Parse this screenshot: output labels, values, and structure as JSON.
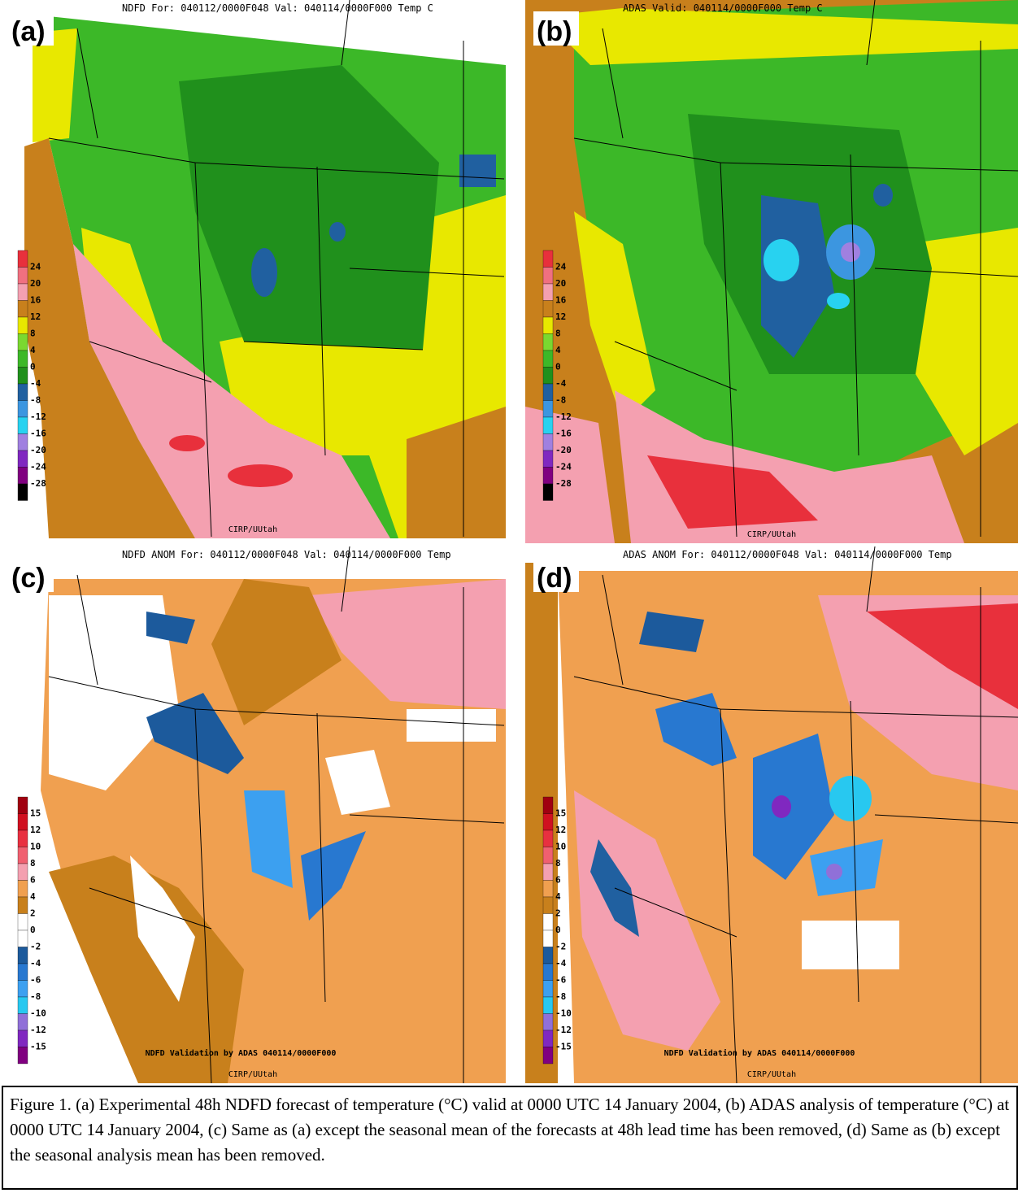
{
  "panels": [
    {
      "label": "(a)",
      "header": "NDFD For: 040112/0000F048 Val: 040114/0000F000 Temp C",
      "footer": [
        "CIRP/UUtah"
      ],
      "colorbar": {
        "labels": [
          24,
          20,
          16,
          12,
          8,
          4,
          0,
          -4,
          -8,
          -12,
          -16,
          -20,
          -24,
          -28
        ],
        "colors": [
          "#e8303c",
          "#f07080",
          "#f4a0b0",
          "#c8801c",
          "#e8e800",
          "#7ad830",
          "#3cb828",
          "#20901c",
          "#2060a0",
          "#3c96e0",
          "#28d2f0",
          "#a080e0",
          "#8028c0",
          "#800080",
          "#000000"
        ]
      }
    },
    {
      "label": "(b)",
      "header": "ADAS Valid: 040114/0000F000 Temp C",
      "footer": [
        "CIRP/UUtah"
      ],
      "colorbar": {
        "labels": [
          24,
          20,
          16,
          12,
          8,
          4,
          0,
          -4,
          -8,
          -12,
          -16,
          -20,
          -24,
          -28
        ],
        "colors": [
          "#e8303c",
          "#f07080",
          "#f4a0b0",
          "#c8801c",
          "#e8e800",
          "#7ad830",
          "#3cb828",
          "#20901c",
          "#2060a0",
          "#3c96e0",
          "#28d2f0",
          "#a080e0",
          "#8028c0",
          "#800080",
          "#000000"
        ]
      }
    },
    {
      "label": "(c)",
      "header": "NDFD ANOM For: 040112/0000F048 Val: 040114/0000F000 Temp",
      "footer": [
        "NDFD Validation by ADAS 040114/0000F000",
        "CIRP/UUtah"
      ],
      "colorbar": {
        "labels": [
          15,
          12,
          10,
          8,
          6,
          4,
          2,
          0,
          -2,
          -4,
          -6,
          -8,
          -10,
          -12,
          -15
        ],
        "colors": [
          "#a00010",
          "#d01020",
          "#e83040",
          "#f06070",
          "#f4a0b0",
          "#f0a050",
          "#c8801c",
          "#ffffff",
          "#ffffff",
          "#1c5a9c",
          "#2878d0",
          "#3ca0f0",
          "#28c8f0",
          "#9070d8",
          "#8028c0",
          "#800080"
        ]
      }
    },
    {
      "label": "(d)",
      "header": "ADAS ANOM For: 040112/0000F048 Val: 040114/0000F000 Temp",
      "footer": [
        "NDFD Validation by ADAS 040114/0000F000",
        "CIRP/UUtah"
      ],
      "colorbar": {
        "labels": [
          15,
          12,
          10,
          8,
          6,
          4,
          2,
          0,
          -2,
          -4,
          -6,
          -8,
          -10,
          -12,
          -15
        ],
        "colors": [
          "#a00010",
          "#d01020",
          "#e83040",
          "#f06070",
          "#f4a0b0",
          "#f0a050",
          "#c8801c",
          "#ffffff",
          "#ffffff",
          "#1c5a9c",
          "#2878d0",
          "#3ca0f0",
          "#28c8f0",
          "#9070d8",
          "#8028c0",
          "#800080"
        ]
      }
    }
  ],
  "caption": "Figure 1. (a) Experimental 48h NDFD forecast of temperature (°C) valid at 0000 UTC 14 January 2004, (b) ADAS analysis of temperature (°C) at 0000 UTC 14 January 2004, (c) Same as (a) except the seasonal mean of the forecasts at 48h lead time has been removed, (d) Same as (b) except the seasonal analysis mean has been removed."
}
